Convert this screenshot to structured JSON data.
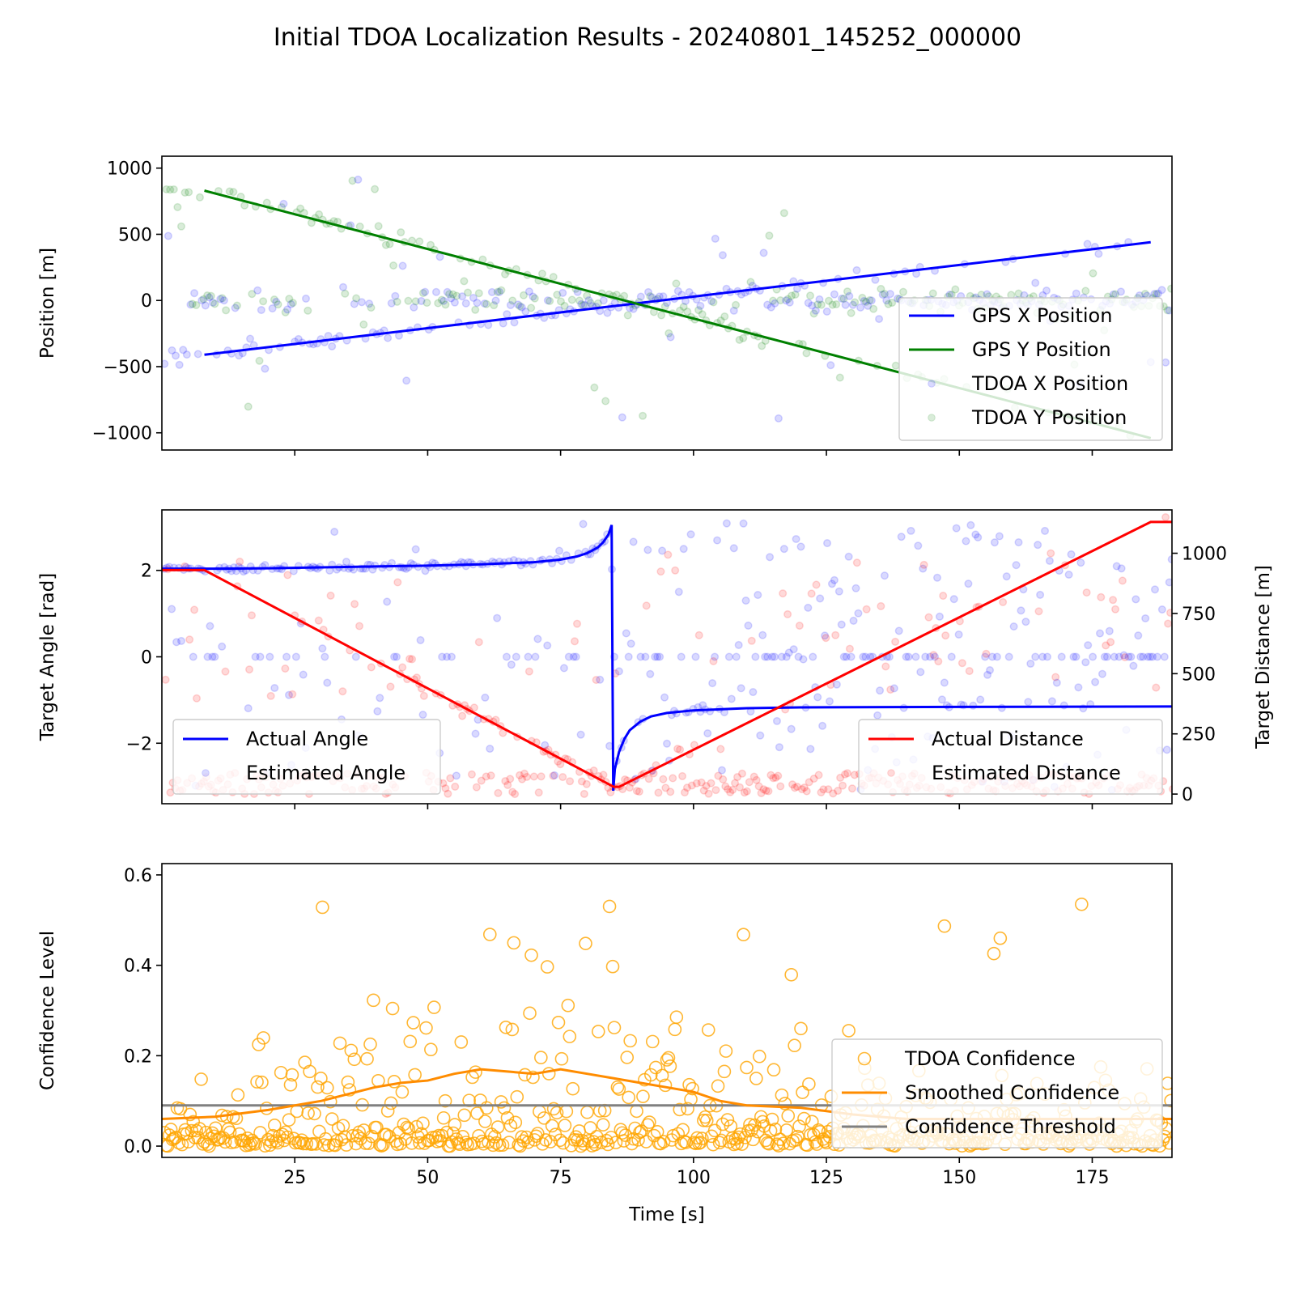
{
  "chart_data": {
    "type": "line",
    "title": "Initial TDOA Localization Results - 20240801_145252_000000",
    "xlabel": "Time [s]",
    "xlim": [
      0,
      190
    ],
    "xticks": [
      25,
      50,
      75,
      100,
      125,
      150,
      175
    ],
    "panels": [
      {
        "id": "position",
        "ylabel": "Position [m]",
        "ylim": [
          -1130,
          1090
        ],
        "yticks": [
          1000,
          500,
          0,
          -500,
          -1000
        ],
        "ytick_labels": [
          "1000",
          "500",
          "0",
          "−500",
          "−1000"
        ],
        "legend_position": "lower right",
        "series": [
          {
            "name": "GPS X Position",
            "type": "line",
            "color": "#0000ff",
            "x": [
              8,
              186
            ],
            "y": [
              -410,
              440
            ]
          },
          {
            "name": "GPS Y Position",
            "type": "line",
            "color": "#008000",
            "x": [
              8,
              186
            ],
            "y": [
              830,
              -1040
            ]
          },
          {
            "name": "TDOA X Position",
            "type": "scatter",
            "color": "#0000ff",
            "opacity": 0.15,
            "note": "noisy scatter around GPS X track and around 0"
          },
          {
            "name": "TDOA Y Position",
            "type": "scatter",
            "color": "#008000",
            "opacity": 0.15,
            "note": "noisy scatter around GPS Y track and around 0"
          }
        ]
      },
      {
        "id": "angle-distance",
        "ylabel": "Target Angle [rad]",
        "ylim": [
          -3.4,
          3.4
        ],
        "yticks": [
          2,
          0,
          -2
        ],
        "ytick_labels": [
          "2",
          "0",
          "−2"
        ],
        "ylabel_right": "Target Distance [m]",
        "ylim_right": [
          -40,
          1180
        ],
        "yticks_right": [
          1000,
          750,
          500,
          250,
          0
        ],
        "legends": [
          {
            "position": "lower left",
            "entries": [
              "Actual Angle",
              "Estimated Angle"
            ]
          },
          {
            "position": "lower right",
            "entries": [
              "Actual Distance",
              "Estimated Distance"
            ]
          }
        ],
        "series": [
          {
            "name": "Actual Angle",
            "type": "line",
            "axis": "left",
            "color": "#0000ff",
            "x": [
              0,
              10,
              20,
              30,
              40,
              50,
              60,
              70,
              75,
              78,
              80,
              82,
              83,
              84,
              84.6,
              84.9,
              85.2,
              86,
              87,
              88,
              90,
              92,
              95,
              100,
              110,
              120,
              150,
              190
            ],
            "y": [
              2.04,
              2.04,
              2.05,
              2.07,
              2.09,
              2.11,
              2.14,
              2.19,
              2.25,
              2.32,
              2.4,
              2.53,
              2.65,
              2.83,
              3.05,
              -3.1,
              -2.6,
              -2.2,
              -1.9,
              -1.7,
              -1.5,
              -1.38,
              -1.3,
              -1.24,
              -1.19,
              -1.17,
              -1.16,
              -1.15
            ]
          },
          {
            "name": "Estimated Angle",
            "type": "scatter",
            "axis": "left",
            "color": "#0000ff",
            "opacity": 0.15
          },
          {
            "name": "Actual Distance",
            "type": "line",
            "axis": "right",
            "color": "#ff0000",
            "x": [
              0,
              8,
              85,
              86,
              186,
              190
            ],
            "y": [
              930,
              930,
              30,
              30,
              1130,
              1130
            ]
          },
          {
            "name": "Estimated Distance",
            "type": "scatter",
            "axis": "right",
            "color": "#ff0000",
            "opacity": 0.15
          }
        ]
      },
      {
        "id": "confidence",
        "ylabel": "Confidence Level",
        "ylim": [
          -0.025,
          0.625
        ],
        "yticks": [
          0.6,
          0.4,
          0.2,
          0.0
        ],
        "ytick_labels": [
          "0.6",
          "0.4",
          "0.2",
          "0.0"
        ],
        "legend_position": "lower right",
        "series": [
          {
            "name": "TDOA Confidence",
            "type": "scatter",
            "marker": "open-circle",
            "color": "#ffa500",
            "opacity": 0.8
          },
          {
            "name": "Smoothed Confidence",
            "type": "line",
            "color": "#ff8c00",
            "x": [
              0,
              10,
              20,
              30,
              40,
              45,
              50,
              55,
              60,
              65,
              70,
              75,
              80,
              85,
              90,
              95,
              100,
              105,
              110,
              120,
              130,
              140,
              150,
              160,
              170,
              180,
              190
            ],
            "y": [
              0.06,
              0.065,
              0.08,
              0.1,
              0.13,
              0.14,
              0.145,
              0.16,
              0.17,
              0.165,
              0.16,
              0.17,
              0.16,
              0.15,
              0.14,
              0.13,
              0.12,
              0.1,
              0.09,
              0.085,
              0.07,
              0.06,
              0.06,
              0.06,
              0.06,
              0.06,
              0.06
            ]
          },
          {
            "name": "Confidence Threshold",
            "type": "line",
            "color": "#808080",
            "x": [
              0,
              190
            ],
            "y": [
              0.09,
              0.09
            ]
          }
        ]
      }
    ]
  }
}
